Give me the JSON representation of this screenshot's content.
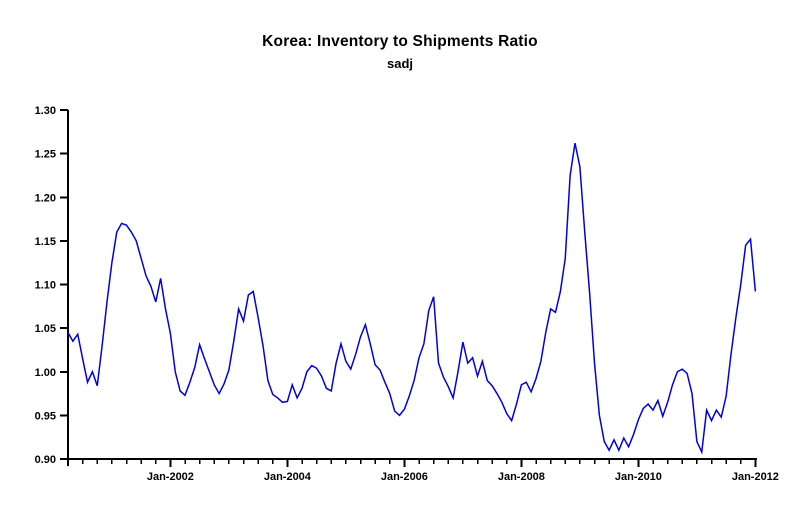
{
  "chart_data": {
    "type": "line",
    "title": "Korea: Inventory to Shipments Ratio",
    "subtitle": "sadj",
    "line_color": "#0000e0",
    "axis_color": "#000000",
    "background_color": "#ffffff",
    "grid": "off",
    "legend": "none",
    "xlabel": "",
    "ylabel": "",
    "ylim": [
      0.9,
      1.3
    ],
    "series": [
      {
        "name": "Korea inventory to shipments ratio, seasonally adjusted",
        "frequency": "monthly",
        "start_month": "2000-04",
        "end_month": "2012-01",
        "values": [
          1.045,
          1.035,
          1.043,
          1.015,
          0.988,
          1.0,
          0.984,
          1.03,
          1.08,
          1.125,
          1.16,
          1.17,
          1.168,
          1.16,
          1.15,
          1.13,
          1.11,
          1.098,
          1.08,
          1.107,
          1.072,
          1.044,
          1.0,
          0.978,
          0.973,
          0.988,
          1.005,
          1.031,
          1.015,
          1.0,
          0.985,
          0.975,
          0.986,
          1.002,
          1.035,
          1.072,
          1.058,
          1.088,
          1.092,
          1.062,
          1.03,
          0.99,
          0.974,
          0.97,
          0.965,
          0.966,
          0.985,
          0.97,
          0.981,
          1.0,
          1.007,
          1.004,
          0.995,
          0.981,
          0.978,
          1.01,
          1.032,
          1.012,
          1.003,
          1.02,
          1.04,
          1.054,
          1.032,
          1.008,
          1.002,
          0.988,
          0.975,
          0.955,
          0.95,
          0.957,
          0.972,
          0.99,
          1.016,
          1.032,
          1.07,
          1.086,
          1.01,
          0.994,
          0.983,
          0.97,
          1.0,
          1.034,
          1.01,
          1.016,
          0.995,
          1.012,
          0.99,
          0.984,
          0.975,
          0.965,
          0.952,
          0.944,
          0.963,
          0.985,
          0.988,
          0.977,
          0.992,
          1.012,
          1.045,
          1.072,
          1.068,
          1.092,
          1.13,
          1.225,
          1.262,
          1.235,
          1.16,
          1.09,
          1.01,
          0.95,
          0.92,
          0.91,
          0.922,
          0.91,
          0.924,
          0.914,
          0.928,
          0.945,
          0.958,
          0.963,
          0.956,
          0.967,
          0.949,
          0.965,
          0.985,
          1.0,
          1.003,
          0.998,
          0.975,
          0.92,
          0.908,
          0.956,
          0.944,
          0.956,
          0.948,
          0.972,
          1.02,
          1.062,
          1.1,
          1.145,
          1.152,
          1.092
        ]
      }
    ],
    "x_axis": {
      "tick_labels": [
        "Jan-2002",
        "Jan-2004",
        "Jan-2006",
        "Jan-2008",
        "Jan-2010",
        "Jan-2012"
      ],
      "tick_month_indices": [
        21,
        45,
        69,
        93,
        117,
        141
      ],
      "minor_tick_interval_months": 3
    },
    "y_axis": {
      "tick_labels": [
        "0.90",
        "0.95",
        "1.00",
        "1.05",
        "1.10",
        "1.15",
        "1.20",
        "1.25",
        "1.30"
      ],
      "tick_values": [
        0.9,
        0.95,
        1.0,
        1.05,
        1.1,
        1.15,
        1.2,
        1.25,
        1.3
      ]
    }
  }
}
